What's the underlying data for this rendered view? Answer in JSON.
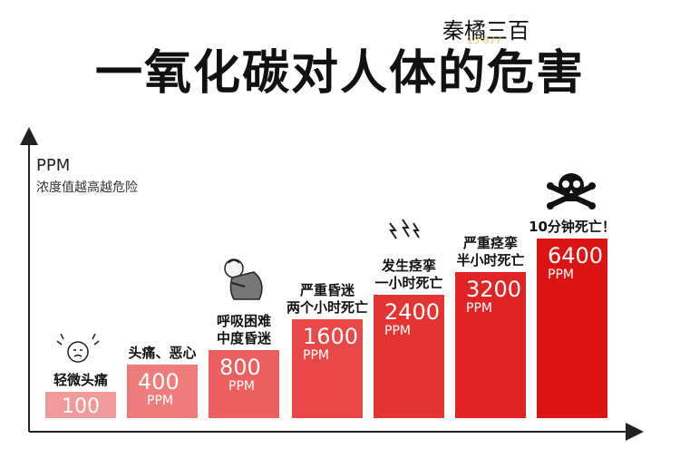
{
  "title": "一氧化碳对人体的危害",
  "author": "秦橘三百",
  "watermark": "13      677",
  "chart_data": {
    "type": "bar",
    "ylabel": "PPM",
    "ylabel_note": "浓度值越高越危险",
    "categories": [
      "100",
      "400",
      "800",
      "1600",
      "2400",
      "3200",
      "6400"
    ],
    "values": [
      100,
      400,
      800,
      1600,
      2400,
      3200,
      6400
    ],
    "units": [
      "",
      "PPM",
      "PPM",
      "PPM",
      "PPM",
      "PPM",
      "PPM"
    ],
    "effects": [
      [
        "轻微头痛"
      ],
      [
        "头痛、恶心"
      ],
      [
        "呼吸困难",
        "中度昏迷"
      ],
      [
        "严重昏迷",
        "两个小时死亡"
      ],
      [
        "发生痉挛",
        "一小时死亡"
      ],
      [
        "严重痉挛",
        "半小时死亡"
      ],
      [
        "10分钟死亡！"
      ]
    ],
    "colors": [
      "#f29a9a",
      "#ef7b7b",
      "#ec5f5f",
      "#e84848",
      "#e43434",
      "#e02424",
      "#dc1414"
    ],
    "icons": [
      "headache-face-icon",
      "",
      "choking-person-icon",
      "",
      "lightning-icon",
      "",
      "skull-crossbones-icon"
    ]
  }
}
